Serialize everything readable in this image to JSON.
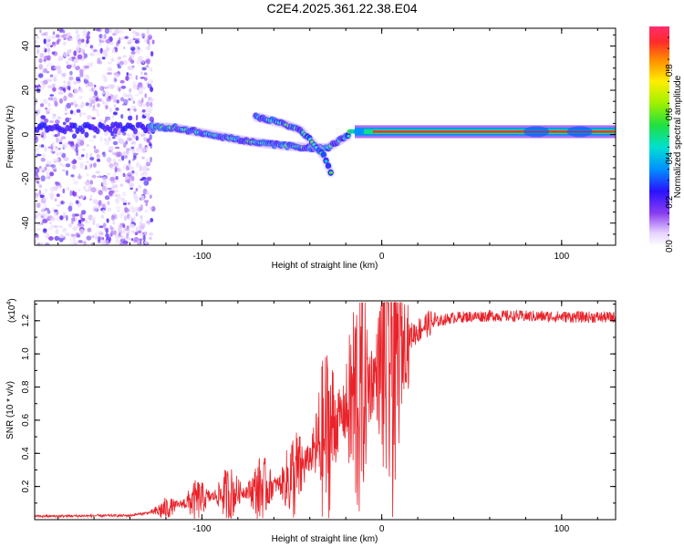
{
  "title": "C2E4.2025.361.22.38.E04",
  "chart_data": [
    {
      "type": "heatmap",
      "name": "spectrogram",
      "xlabel": "Height of straight line (km)",
      "ylabel": "Frequency (Hz)",
      "xlim": [
        -193,
        130
      ],
      "ylim": [
        -50,
        48
      ],
      "xticks": [
        -100,
        0,
        100
      ],
      "yticks": [
        -40,
        -20,
        0,
        20,
        40
      ],
      "colorbar": {
        "label": "Normalized spectral amplitude",
        "range": [
          0,
          1
        ],
        "ticks": [
          "0.0",
          "0.2",
          "0.4",
          "0.6",
          "0.8"
        ]
      },
      "features": {
        "noise_region_x": [
          -193,
          -127
        ],
        "main_branch": [
          [
            -140,
            4
          ],
          [
            -115,
            3
          ],
          [
            -95,
            0
          ],
          [
            -75,
            -3
          ],
          [
            -55,
            -5
          ],
          [
            -40,
            -6
          ],
          [
            -30,
            -6
          ],
          [
            -20,
            -1
          ],
          [
            -10,
            1
          ],
          [
            0,
            1
          ],
          [
            25,
            1
          ],
          [
            130,
            1
          ]
        ],
        "secondary_branch": [
          [
            -70,
            8
          ],
          [
            -55,
            5
          ],
          [
            -45,
            2
          ],
          [
            -38,
            -4
          ],
          [
            -32,
            -10
          ],
          [
            -28,
            -18
          ]
        ],
        "saturated_band_x": [
          -15,
          130
        ]
      }
    },
    {
      "type": "line",
      "name": "snr",
      "xlabel": "Height of straight line (km)",
      "ylabel": "SNR (10 * v/v)",
      "scale_label": "(x10",
      "scale_exp": "4",
      "scale_suffix": ")",
      "xlim": [
        -193,
        130
      ],
      "ylim": [
        0,
        1.32
      ],
      "xticks": [
        -100,
        0,
        100
      ],
      "yticks": [
        0.2,
        0.4,
        0.6,
        0.8,
        1.0,
        1.2
      ],
      "color": "#e8232a",
      "trend": [
        [
          -193,
          0.02
        ],
        [
          -140,
          0.025
        ],
        [
          -125,
          0.05
        ],
        [
          -110,
          0.1
        ],
        [
          -90,
          0.15
        ],
        [
          -70,
          0.18
        ],
        [
          -55,
          0.22
        ],
        [
          -45,
          0.3
        ],
        [
          -35,
          0.45
        ],
        [
          -25,
          0.6
        ],
        [
          -15,
          0.72
        ],
        [
          -5,
          0.85
        ],
        [
          5,
          1.0
        ],
        [
          15,
          1.1
        ],
        [
          25,
          1.18
        ],
        [
          40,
          1.22
        ],
        [
          60,
          1.23
        ],
        [
          130,
          1.22
        ]
      ]
    }
  ]
}
